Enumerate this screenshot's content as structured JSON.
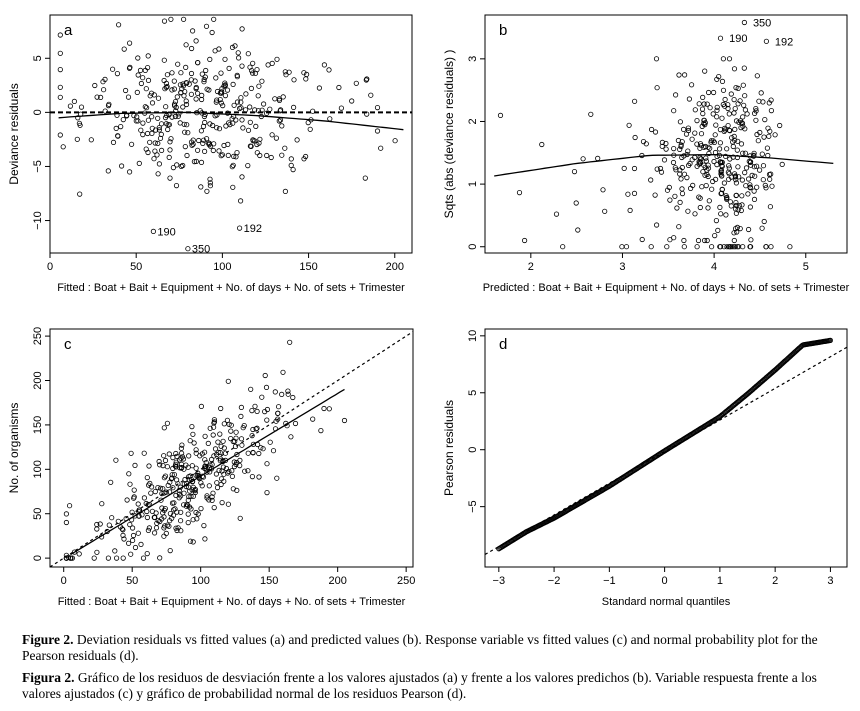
{
  "chart_data": [
    {
      "panel": "a",
      "type": "scatter",
      "title": "",
      "xlabel": "Fitted : Boat + Bait + Equipment + No. of days + No. of sets + Trimester",
      "ylabel": "Deviance residuals",
      "xlim": [
        0,
        210
      ],
      "ylim": [
        -13,
        9
      ],
      "xticks": [
        0,
        50,
        100,
        150,
        200
      ],
      "yticks": [
        -10,
        -5,
        0,
        5
      ],
      "reference_line": {
        "style": "dashed",
        "y": 0
      },
      "smooth_line": {
        "x": [
          5,
          40,
          80,
          120,
          160,
          205
        ],
        "y": [
          -0.5,
          -0.1,
          0.0,
          -0.3,
          -0.8,
          -1.6
        ]
      },
      "annotations": [
        {
          "text": "190",
          "x": 60,
          "y": -11
        },
        {
          "text": "192",
          "x": 110,
          "y": -10.7
        },
        {
          "text": "350",
          "x": 80,
          "y": -12.6
        }
      ],
      "n_points": 380,
      "point_style": "open circles"
    },
    {
      "panel": "b",
      "type": "scatter",
      "title": "",
      "xlabel": "Predicted : Boat + Bait + Equipment + No. of days + No. of sets + Trimester",
      "ylabel": "Sqts (abs (deviance residuals) )",
      "xlim": [
        1.5,
        5.45
      ],
      "ylim": [
        -0.1,
        3.7
      ],
      "xticks": [
        2,
        3,
        4,
        5
      ],
      "yticks": [
        0,
        1,
        2,
        3
      ],
      "smooth_line": {
        "x": [
          1.6,
          2.5,
          3.3,
          4.0,
          4.6,
          5.3
        ],
        "y": [
          1.13,
          1.33,
          1.46,
          1.47,
          1.42,
          1.33
        ]
      },
      "annotations": [
        {
          "text": "350",
          "x": 4.38,
          "y": 3.58
        },
        {
          "text": "190",
          "x": 4.12,
          "y": 3.33
        },
        {
          "text": "192",
          "x": 4.62,
          "y": 3.28
        }
      ],
      "n_points": 380,
      "point_style": "open circles"
    },
    {
      "panel": "c",
      "type": "scatter",
      "title": "",
      "xlabel": "Fitted : Boat + Bait + Equipment + No. of days + No. of sets + Trimester",
      "ylabel": "No. of organisms",
      "xlim": [
        -10,
        255
      ],
      "ylim": [
        -10,
        258
      ],
      "xticks": [
        0,
        50,
        100,
        150,
        200,
        250
      ],
      "yticks": [
        0,
        50,
        100,
        150,
        200,
        250
      ],
      "reference_line": {
        "style": "dotted",
        "x": [
          -10,
          255
        ],
        "y": [
          -10,
          255
        ]
      },
      "fit_line": {
        "x": [
          5,
          205
        ],
        "y": [
          4,
          190
        ]
      },
      "n_points": 380,
      "point_style": "open circles"
    },
    {
      "panel": "d",
      "type": "scatter",
      "title": "",
      "xlabel": "Standard normal quantiles",
      "ylabel": "Pearson residuals",
      "xlim": [
        -3.25,
        3.3
      ],
      "ylim": [
        -10.3,
        10.6
      ],
      "xticks": [
        -3,
        -2,
        -1,
        0,
        1,
        2,
        3
      ],
      "yticks": [
        -5,
        0,
        5,
        10
      ],
      "reference_line": {
        "style": "dotted",
        "x": [
          -3.25,
          3.3
        ],
        "y": [
          -9.2,
          9.0
        ]
      },
      "qq_curve": {
        "x": [
          -3.0,
          -2.5,
          -2.0,
          -1.0,
          0.0,
          1.0,
          1.5,
          2.0,
          2.5,
          3.0
        ],
        "y": [
          -8.7,
          -7.2,
          -6.0,
          -3.2,
          -0.1,
          2.9,
          4.9,
          7.0,
          9.2,
          9.6
        ]
      },
      "n_points": 380,
      "point_style": "open circles"
    }
  ],
  "panel_labels": [
    "a",
    "b",
    "c",
    "d"
  ],
  "caption": {
    "en_label": "Figure 2.",
    "en_text": " Deviation residuals vs fitted values (a) and predicted values (b). Response variable vs fitted values (c) and normal probability plot for the Pearson residuals (d).",
    "es_label": "Figura 2.",
    "es_text": " Gráfico de los residuos de desviación frente a los valores ajustados (a) y frente a los valores predichos (b). Variable respuesta frente a los valores ajustados (c)  y gráfico de probabilidad normal de los residuos Pearson (d)."
  }
}
